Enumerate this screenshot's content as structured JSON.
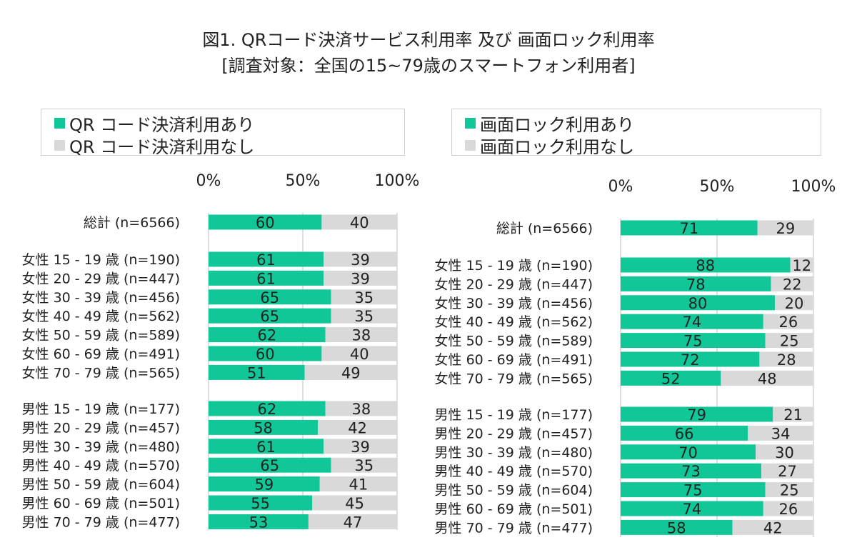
{
  "title": "図1. QRコード決済サービス利用率 及び 画面ロック利用率",
  "subtitle": "[調査対象：全国の15~79歳のスマートフォン利用者]",
  "colors": {
    "yes": "#12c797",
    "no": "#d9d9d9",
    "grid": "#bfbfbf"
  },
  "chart_data": [
    {
      "type": "bar",
      "stacked": true,
      "orientation": "horizontal",
      "xlim": [
        0,
        100
      ],
      "x_ticks": [
        "0%",
        "50%",
        "100%"
      ],
      "grid": true,
      "legend_position": "top",
      "categories": [
        "総計 (n=6566)",
        "女性 15 - 19 歳 (n=190)",
        "女性 20 - 29 歳 (n=447)",
        "女性 30 - 39 歳 (n=456)",
        "女性 40 - 49 歳 (n=562)",
        "女性 50 - 59 歳 (n=589)",
        "女性 60 - 69 歳 (n=491)",
        "女性 70 - 79 歳 (n=565)",
        "男性 15 - 19 歳 (n=177)",
        "男性 20 - 29 歳 (n=457)",
        "男性 30 - 39 歳 (n=480)",
        "男性 40 - 49 歳 (n=570)",
        "男性 50 - 59 歳 (n=604)",
        "男性 60 - 69 歳 (n=501)",
        "男性 70 - 79 歳 (n=477)"
      ],
      "series": [
        {
          "name": "QR コード決済利用あり",
          "color": "#12c797",
          "values": [
            60,
            61,
            61,
            65,
            65,
            62,
            60,
            51,
            62,
            58,
            61,
            65,
            59,
            55,
            53
          ]
        },
        {
          "name": "QR コード決済利用なし",
          "color": "#d9d9d9",
          "values": [
            40,
            39,
            39,
            35,
            35,
            38,
            40,
            49,
            38,
            42,
            39,
            35,
            41,
            45,
            47
          ]
        }
      ]
    },
    {
      "type": "bar",
      "stacked": true,
      "orientation": "horizontal",
      "xlim": [
        0,
        100
      ],
      "x_ticks": [
        "0%",
        "50%",
        "100%"
      ],
      "grid": true,
      "legend_position": "top",
      "categories": [
        "総計 (n=6566)",
        "女性 15 - 19 歳 (n=190)",
        "女性 20 - 29 歳 (n=447)",
        "女性 30 - 39 歳 (n=456)",
        "女性 40 - 49 歳 (n=562)",
        "女性 50 - 59 歳 (n=589)",
        "女性 60 - 69 歳 (n=491)",
        "女性 70 - 79 歳 (n=565)",
        "男性 15 - 19 歳 (n=177)",
        "男性 20 - 29 歳 (n=457)",
        "男性 30 - 39 歳 (n=480)",
        "男性 40 - 49 歳 (n=570)",
        "男性 50 - 59 歳 (n=604)",
        "男性 60 - 69 歳 (n=501)",
        "男性 70 - 79 歳 (n=477)"
      ],
      "series": [
        {
          "name": "画面ロック利用あり",
          "color": "#12c797",
          "values": [
            71,
            88,
            78,
            80,
            74,
            75,
            72,
            52,
            79,
            66,
            70,
            73,
            75,
            74,
            58
          ]
        },
        {
          "name": "画面ロック利用なし",
          "color": "#d9d9d9",
          "values": [
            29,
            12,
            22,
            20,
            26,
            25,
            28,
            48,
            21,
            34,
            30,
            27,
            25,
            26,
            42
          ]
        }
      ]
    }
  ]
}
